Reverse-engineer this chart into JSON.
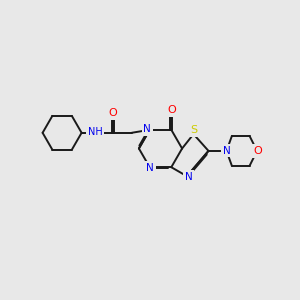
{
  "bg_color": "#e8e8e8",
  "bond_color": "#1a1a1a",
  "N_color": "#0000ee",
  "O_color": "#ff0000",
  "S_color": "#cccc00",
  "H_color": "#4a9090",
  "lw": 1.4,
  "doff": 0.035,
  "xlim": [
    0,
    10
  ],
  "ylim": [
    0,
    10
  ],
  "figsize": [
    3.0,
    3.0
  ],
  "dpi": 100
}
